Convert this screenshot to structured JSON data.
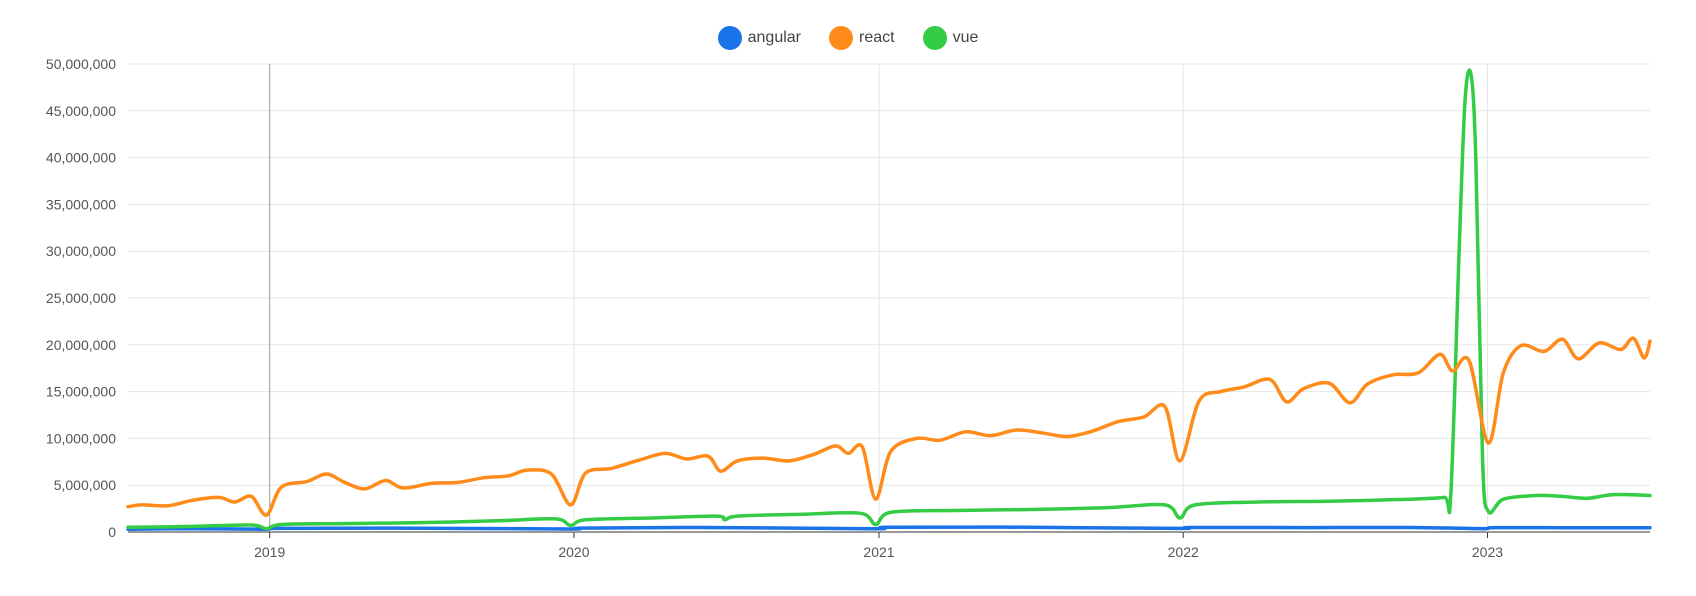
{
  "chart_data": {
    "type": "line",
    "title": "",
    "xlabel": "",
    "ylabel": "",
    "xlim": [
      "2018-07-15",
      "2023-07-15"
    ],
    "ylim": [
      0,
      50000000
    ],
    "grid": true,
    "legend_placement": "top-center",
    "x_ticks": [
      "2019",
      "2020",
      "2021",
      "2022",
      "2023"
    ],
    "y_ticks": [
      "0",
      "5,000,000",
      "10,000,000",
      "15,000,000",
      "20,000,000",
      "25,000,000",
      "30,000,000",
      "35,000,000",
      "40,000,000",
      "45,000,000",
      "50,000,000"
    ],
    "series": [
      {
        "name": "angular",
        "color": "#1a73e8",
        "points": [
          [
            "2018-07-15",
            300000
          ],
          [
            "2018-10-01",
            350000
          ],
          [
            "2018-12-25",
            300000
          ],
          [
            "2019-01-10",
            380000
          ],
          [
            "2019-06-01",
            420000
          ],
          [
            "2019-12-25",
            320000
          ],
          [
            "2020-01-10",
            420000
          ],
          [
            "2020-06-01",
            480000
          ],
          [
            "2020-12-25",
            350000
          ],
          [
            "2021-01-10",
            500000
          ],
          [
            "2021-06-01",
            520000
          ],
          [
            "2021-12-25",
            380000
          ],
          [
            "2022-01-10",
            480000
          ],
          [
            "2022-06-01",
            470000
          ],
          [
            "2022-10-01",
            480000
          ],
          [
            "2022-12-25",
            360000
          ],
          [
            "2023-01-10",
            470000
          ],
          [
            "2023-04-01",
            460000
          ],
          [
            "2023-07-15",
            450000
          ]
        ]
      },
      {
        "name": "react",
        "color": "#ff8c1a",
        "points": [
          [
            "2018-07-15",
            2700000
          ],
          [
            "2018-08-01",
            2900000
          ],
          [
            "2018-09-01",
            2800000
          ],
          [
            "2018-10-01",
            3400000
          ],
          [
            "2018-11-01",
            3700000
          ],
          [
            "2018-11-20",
            3200000
          ],
          [
            "2018-12-10",
            3800000
          ],
          [
            "2018-12-28",
            1800000
          ],
          [
            "2019-01-15",
            4800000
          ],
          [
            "2019-02-15",
            5400000
          ],
          [
            "2019-03-10",
            6200000
          ],
          [
            "2019-04-01",
            5300000
          ],
          [
            "2019-04-25",
            4600000
          ],
          [
            "2019-05-20",
            5500000
          ],
          [
            "2019-06-10",
            4700000
          ],
          [
            "2019-07-15",
            5200000
          ],
          [
            "2019-08-15",
            5300000
          ],
          [
            "2019-09-15",
            5800000
          ],
          [
            "2019-10-15",
            6000000
          ],
          [
            "2019-11-05",
            6600000
          ],
          [
            "2019-12-05",
            6200000
          ],
          [
            "2019-12-28",
            2900000
          ],
          [
            "2020-01-15",
            6300000
          ],
          [
            "2020-02-15",
            6800000
          ],
          [
            "2020-03-20",
            7700000
          ],
          [
            "2020-04-20",
            8400000
          ],
          [
            "2020-05-15",
            7800000
          ],
          [
            "2020-06-10",
            8100000
          ],
          [
            "2020-06-25",
            6500000
          ],
          [
            "2020-07-15",
            7600000
          ],
          [
            "2020-08-15",
            7900000
          ],
          [
            "2020-09-15",
            7600000
          ],
          [
            "2020-10-15",
            8300000
          ],
          [
            "2020-11-10",
            9200000
          ],
          [
            "2020-11-25",
            8400000
          ],
          [
            "2020-12-12",
            9100000
          ],
          [
            "2020-12-28",
            3500000
          ],
          [
            "2021-01-15",
            8600000
          ],
          [
            "2021-02-15",
            10000000
          ],
          [
            "2021-03-15",
            9800000
          ],
          [
            "2021-04-15",
            10700000
          ],
          [
            "2021-05-15",
            10300000
          ],
          [
            "2021-06-15",
            10900000
          ],
          [
            "2021-07-15",
            10600000
          ],
          [
            "2021-08-15",
            10200000
          ],
          [
            "2021-09-15",
            10800000
          ],
          [
            "2021-10-15",
            11800000
          ],
          [
            "2021-11-15",
            12300000
          ],
          [
            "2021-12-10",
            13400000
          ],
          [
            "2021-12-28",
            7600000
          ],
          [
            "2022-01-20",
            14000000
          ],
          [
            "2022-02-15",
            15000000
          ],
          [
            "2022-03-15",
            15500000
          ],
          [
            "2022-04-15",
            16300000
          ],
          [
            "2022-05-05",
            13900000
          ],
          [
            "2022-05-25",
            15300000
          ],
          [
            "2022-06-25",
            15900000
          ],
          [
            "2022-07-20",
            13800000
          ],
          [
            "2022-08-10",
            15800000
          ],
          [
            "2022-09-10",
            16800000
          ],
          [
            "2022-10-10",
            17000000
          ],
          [
            "2022-11-05",
            19000000
          ],
          [
            "2022-11-20",
            17200000
          ],
          [
            "2022-12-10",
            18300000
          ],
          [
            "2023-01-02",
            9500000
          ],
          [
            "2023-01-20",
            17000000
          ],
          [
            "2023-02-10",
            19900000
          ],
          [
            "2023-03-10",
            19300000
          ],
          [
            "2023-04-01",
            20600000
          ],
          [
            "2023-04-20",
            18500000
          ],
          [
            "2023-05-15",
            20200000
          ],
          [
            "2023-06-10",
            19500000
          ],
          [
            "2023-06-25",
            20700000
          ],
          [
            "2023-07-08",
            18600000
          ],
          [
            "2023-07-15",
            20400000
          ]
        ]
      },
      {
        "name": "vue",
        "color": "#33cc44",
        "points": [
          [
            "2018-07-15",
            500000
          ],
          [
            "2018-10-01",
            600000
          ],
          [
            "2018-12-10",
            750000
          ],
          [
            "2018-12-28",
            350000
          ],
          [
            "2019-01-15",
            800000
          ],
          [
            "2019-04-01",
            900000
          ],
          [
            "2019-07-01",
            1000000
          ],
          [
            "2019-10-01",
            1200000
          ],
          [
            "2019-12-10",
            1400000
          ],
          [
            "2019-12-28",
            700000
          ],
          [
            "2020-01-15",
            1300000
          ],
          [
            "2020-04-01",
            1500000
          ],
          [
            "2020-06-20",
            1700000
          ],
          [
            "2020-06-30",
            1300000
          ],
          [
            "2020-07-15",
            1700000
          ],
          [
            "2020-10-01",
            1900000
          ],
          [
            "2020-12-10",
            2000000
          ],
          [
            "2020-12-28",
            800000
          ],
          [
            "2021-01-15",
            2100000
          ],
          [
            "2021-04-01",
            2300000
          ],
          [
            "2021-07-01",
            2400000
          ],
          [
            "2021-10-01",
            2600000
          ],
          [
            "2021-12-10",
            2900000
          ],
          [
            "2021-12-28",
            1500000
          ],
          [
            "2022-01-15",
            2900000
          ],
          [
            "2022-04-01",
            3200000
          ],
          [
            "2022-07-01",
            3300000
          ],
          [
            "2022-10-01",
            3500000
          ],
          [
            "2022-11-10",
            3700000
          ],
          [
            "2022-11-18",
            4000000
          ],
          [
            "2022-11-28",
            30000000
          ],
          [
            "2022-12-05",
            46000000
          ],
          [
            "2022-12-12",
            49000000
          ],
          [
            "2022-12-18",
            40000000
          ],
          [
            "2022-12-26",
            8000000
          ],
          [
            "2023-01-02",
            2200000
          ],
          [
            "2023-01-20",
            3500000
          ],
          [
            "2023-03-01",
            3900000
          ],
          [
            "2023-04-01",
            3800000
          ],
          [
            "2023-05-01",
            3600000
          ],
          [
            "2023-06-01",
            4000000
          ],
          [
            "2023-07-15",
            3900000
          ]
        ]
      }
    ]
  }
}
